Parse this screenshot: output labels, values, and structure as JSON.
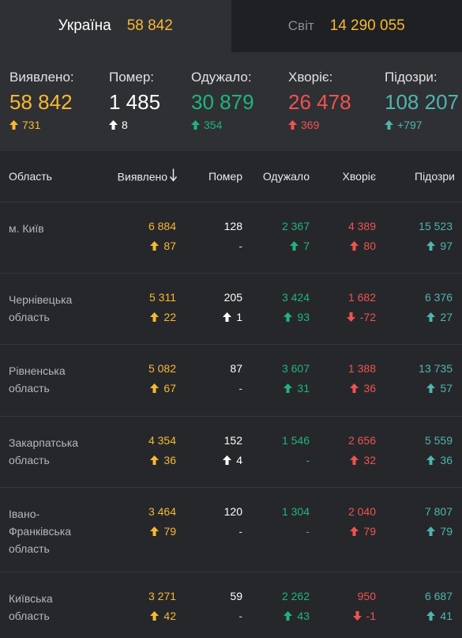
{
  "tabs": {
    "ukraine": {
      "label": "Україна",
      "value": "58 842"
    },
    "world": {
      "label": "Світ",
      "value": "14 290 055"
    }
  },
  "summary": {
    "detected": {
      "label": "Виявлено:",
      "value": "58 842",
      "delta": "731"
    },
    "died": {
      "label": "Помер:",
      "value": "1 485",
      "delta": "8"
    },
    "recovered": {
      "label": "Одужало:",
      "value": "30 879",
      "delta": "354"
    },
    "sick": {
      "label": "Хворіє:",
      "value": "26 478",
      "delta": "369"
    },
    "suspected": {
      "label": "Підозри:",
      "value": "108 207",
      "delta": "+797"
    }
  },
  "table": {
    "headers": {
      "region": "Область",
      "detected": "Виявлено",
      "died": "Помер",
      "recovered": "Одужало",
      "sick": "Хворіє",
      "suspected": "Підозри"
    },
    "rows": [
      {
        "region": [
          "м. Київ"
        ],
        "detected": "6 884",
        "detected_d": "87",
        "died": "128",
        "died_d": "-",
        "recovered": "2 367",
        "recovered_d": "7",
        "sick": "4 389",
        "sick_d": "80",
        "suspected": "15 523",
        "suspected_d": "97"
      },
      {
        "region": [
          "Чернівецька",
          "область"
        ],
        "detected": "5 311",
        "detected_d": "22",
        "died": "205",
        "died_d": "1",
        "recovered": "3 424",
        "recovered_d": "93",
        "sick": "1 682",
        "sick_d": "-72",
        "suspected": "6 376",
        "suspected_d": "27"
      },
      {
        "region": [
          "Рівненська",
          "область"
        ],
        "detected": "5 082",
        "detected_d": "67",
        "died": "87",
        "died_d": "-",
        "recovered": "3 607",
        "recovered_d": "31",
        "sick": "1 388",
        "sick_d": "36",
        "suspected": "13 735",
        "suspected_d": "57"
      },
      {
        "region": [
          "Закарпатська",
          "область"
        ],
        "detected": "4 354",
        "detected_d": "36",
        "died": "152",
        "died_d": "4",
        "recovered": "1 546",
        "recovered_d": "-",
        "sick": "2 656",
        "sick_d": "32",
        "suspected": "5 559",
        "suspected_d": "36"
      },
      {
        "region": [
          "Івано-",
          "Франківська",
          "область"
        ],
        "detected": "3 464",
        "detected_d": "79",
        "died": "120",
        "died_d": "-",
        "recovered": "1 304",
        "recovered_d": "-",
        "sick": "2 040",
        "sick_d": "79",
        "suspected": "7 807",
        "suspected_d": "79"
      },
      {
        "region": [
          "Київська",
          "область"
        ],
        "detected": "3 271",
        "detected_d": "42",
        "died": "59",
        "died_d": "-",
        "recovered": "2 262",
        "recovered_d": "43",
        "sick": "950",
        "sick_d": "-1",
        "suspected": "6 687",
        "suspected_d": "41"
      }
    ]
  },
  "colors": {
    "detected": "#f7b930",
    "died": "#ffffff",
    "recovered": "#1fb47e",
    "sick": "#ef5350",
    "suspected": "#4fb5ae"
  }
}
